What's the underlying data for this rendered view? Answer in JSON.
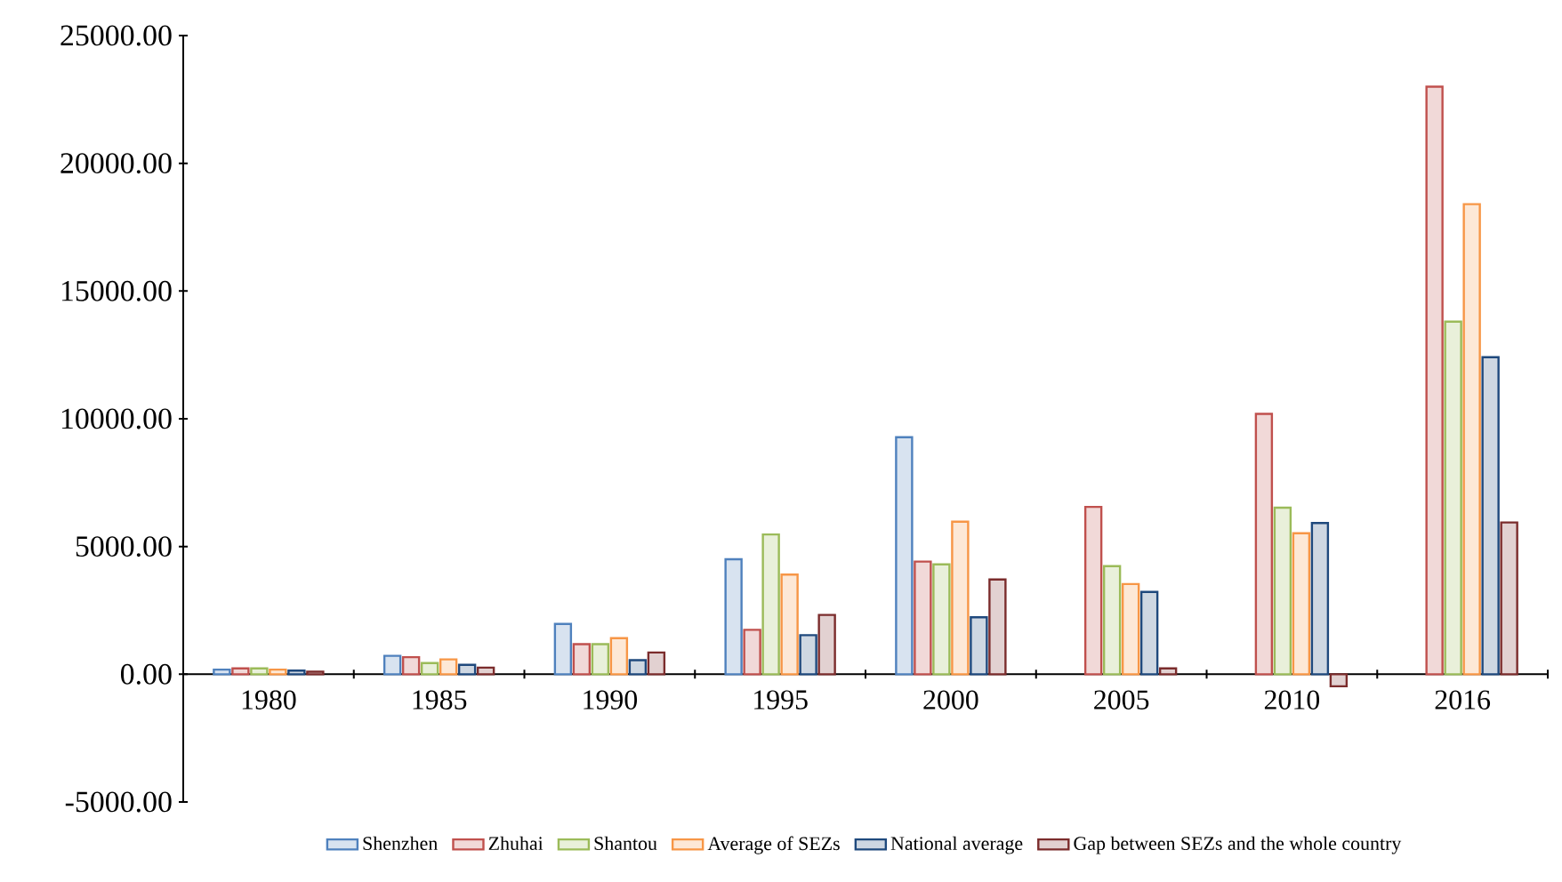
{
  "chart_data": {
    "type": "bar",
    "categories": [
      "1980",
      "1985",
      "1990",
      "1995",
      "2000",
      "2005",
      "2010",
      "2016"
    ],
    "series": [
      {
        "name": "Shenzhen",
        "color": "#4f81bd",
        "values": [
          180,
          720,
          1970,
          4500,
          9280,
          null,
          null,
          null
        ]
      },
      {
        "name": "Zhuhai",
        "color": "#c0504d",
        "values": [
          230,
          670,
          1180,
          1740,
          4410,
          6550,
          10190,
          23000
        ]
      },
      {
        "name": "Shantou",
        "color": "#9bbb59",
        "values": [
          230,
          440,
          1180,
          5470,
          4300,
          4230,
          6520,
          13800
        ]
      },
      {
        "name": "Average of SEZs",
        "color": "#f79646",
        "values": [
          180,
          580,
          1410,
          3900,
          5970,
          3530,
          5520,
          18400
        ]
      },
      {
        "name": "National average",
        "color": "#1f497d",
        "values": [
          140,
          370,
          550,
          1530,
          2230,
          3220,
          5920,
          12410
        ]
      },
      {
        "name": "Gap between SEZs and the whole country",
        "color": "#7b2c2c",
        "values": [
          100,
          260,
          850,
          2320,
          3710,
          230,
          -470,
          5940
        ]
      }
    ],
    "ylim": [
      -5000,
      25000
    ],
    "yticks": [
      {
        "value": -5000,
        "label": "-5000.00"
      },
      {
        "value": 0,
        "label": "0.00"
      },
      {
        "value": 5000,
        "label": "5000.00"
      },
      {
        "value": 10000,
        "label": "10000.00"
      },
      {
        "value": 15000,
        "label": "15000.00"
      },
      {
        "value": 20000,
        "label": "20000.00"
      },
      {
        "value": 25000,
        "label": "25000.00"
      }
    ],
    "grid": false,
    "legend": "bottom"
  }
}
